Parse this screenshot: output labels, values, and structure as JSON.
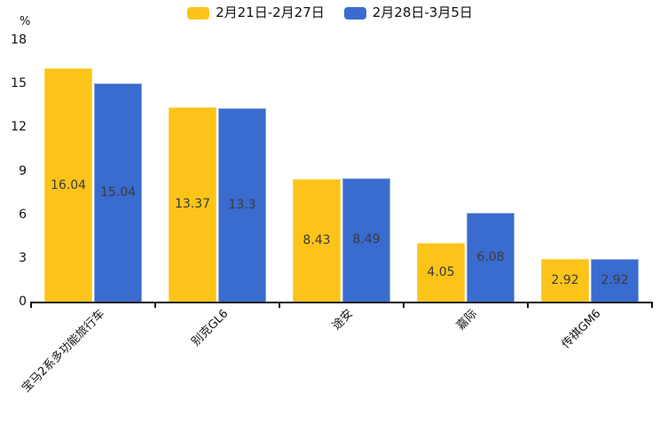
{
  "chart_data": {
    "type": "bar",
    "title": "",
    "unit_label": "%",
    "categories": [
      "宝马2系多功能旅行车",
      "别克GL6",
      "途安",
      "嘉际",
      "传祺GM6"
    ],
    "series": [
      {
        "name": "2月21日-2月27日",
        "color": "#FCC419",
        "border_color": "#fdd351",
        "values": [
          16.04,
          13.37,
          8.43,
          4.05,
          2.92
        ]
      },
      {
        "name": "2月28日-3月5日",
        "color": "#3A6BCE",
        "border_color": "#8aa6e2",
        "values": [
          15.04,
          13.3,
          8.49,
          6.08,
          2.92
        ]
      }
    ],
    "ylim": [
      0,
      18
    ],
    "ytick_step": 3,
    "grid": false,
    "legend_position": "top",
    "axis_color": "#111111",
    "value_label_color": "#3a3a3a"
  }
}
